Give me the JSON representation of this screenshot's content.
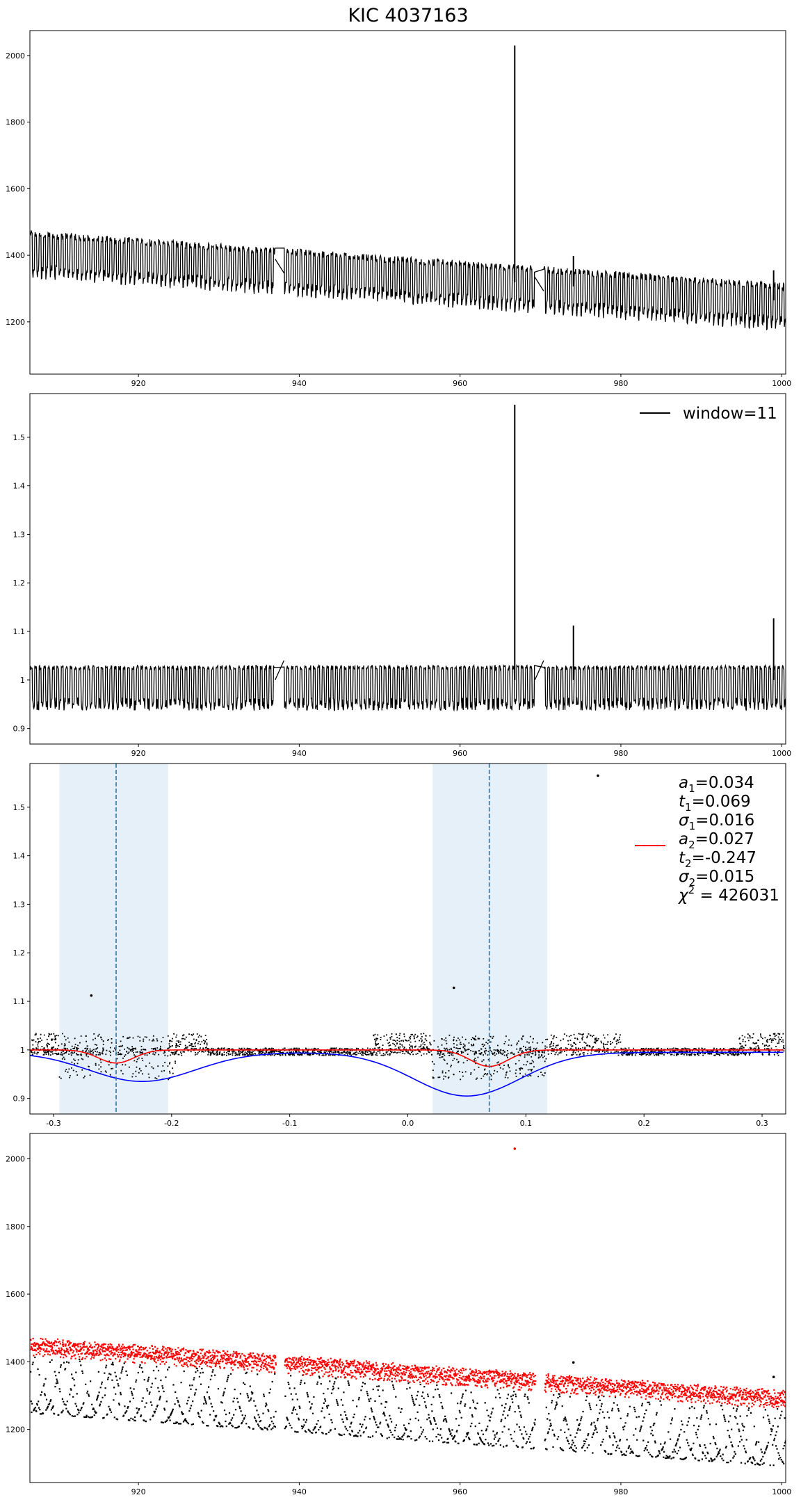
{
  "title": "KIC 4037163",
  "chart_data": [
    {
      "type": "line",
      "panel": "raw flux",
      "xlim": [
        906.5,
        1000.5
      ],
      "ylim": [
        1043,
        2075
      ],
      "xticks": [
        920,
        940,
        960,
        980,
        1000
      ],
      "yticks": [
        1200,
        1400,
        1600,
        1800,
        2000
      ],
      "series": [
        {
          "color": "#000000",
          "trend_start": 1420,
          "trend_end": 1262,
          "upper_offset": 55,
          "lower_offset": -90,
          "period": 0.55,
          "gaps": [
            [
              937.0,
              938.1
            ],
            [
              969.3,
              970.4
            ]
          ],
          "spikes": [
            [
              966.8,
              2030
            ],
            [
              974.1,
              1398
            ],
            [
              999.0,
              1355
            ]
          ]
        }
      ],
      "legend": null,
      "grid": false
    },
    {
      "type": "line",
      "panel": "normalized flux",
      "xlim": [
        906.5,
        1000.5
      ],
      "ylim": [
        0.868,
        1.59
      ],
      "xticks": [
        920,
        940,
        960,
        980,
        1000
      ],
      "yticks": [
        0.9,
        1.0,
        1.1,
        1.2,
        1.3,
        1.4,
        1.5
      ],
      "series": [
        {
          "name": "window=11",
          "color": "#000000",
          "upper": 1.03,
          "lower": 0.94,
          "period": 0.55,
          "gaps": [
            [
              937.0,
              938.1
            ],
            [
              969.3,
              970.4
            ]
          ],
          "spikes": [
            [
              966.8,
              1.567
            ],
            [
              974.1,
              1.112
            ],
            [
              999.0,
              1.127
            ]
          ]
        }
      ],
      "legend": "top-right",
      "grid": false
    },
    {
      "type": "scatter",
      "panel": "phase folded",
      "xlim": [
        -0.32,
        0.32
      ],
      "ylim": [
        0.868,
        1.59
      ],
      "xticks": [
        -0.3,
        -0.2,
        -0.1,
        0.0,
        0.1,
        0.2,
        0.3
      ],
      "yticks": [
        0.9,
        1.0,
        1.1,
        1.2,
        1.3,
        1.4,
        1.5
      ],
      "shaded_regions": [
        [
          -0.295,
          -0.203
        ],
        [
          0.021,
          0.118
        ]
      ],
      "vlines": [
        -0.247,
        0.069
      ],
      "outliers": [
        [
          -0.268,
          1.112
        ],
        [
          0.039,
          1.128
        ],
        [
          0.161,
          1.565
        ]
      ],
      "red_model": {
        "baseline": 1.0,
        "components": [
          {
            "a": 0.027,
            "t": -0.247,
            "sigma": 0.015
          },
          {
            "a": 0.034,
            "t": 0.069,
            "sigma": 0.016
          }
        ]
      },
      "blue_curve": {
        "baseline": 0.995,
        "components": [
          {
            "a": 0.06,
            "t": -0.225,
            "sigma": 0.045
          },
          {
            "a": 0.09,
            "t": 0.05,
            "sigma": 0.045
          }
        ]
      },
      "legend_lines": [
        "a_1=0.034",
        "t_1=0.069",
        "σ_1=0.016",
        "a_2=0.027",
        "t_2=-0.247",
        "σ_2=0.015",
        "χ^2 = 426031"
      ],
      "legend": "top-right",
      "grid": false
    },
    {
      "type": "scatter",
      "panel": "raw flux with model",
      "xlim": [
        906.5,
        1000.5
      ],
      "ylim": [
        1043,
        2075
      ],
      "xticks": [
        920,
        940,
        960,
        980,
        1000
      ],
      "yticks": [
        1200,
        1400,
        1600,
        1800,
        2000
      ],
      "series": [
        {
          "color": "#000000",
          "description": "in-eclipse points",
          "trend_start": 1420,
          "trend_end": 1262,
          "depth_min": -170,
          "depth_max": 0
        },
        {
          "color": "#ff0000",
          "description": "out-of-eclipse points",
          "trend_start": 1420,
          "trend_end": 1262,
          "band": [
            0,
            55
          ]
        }
      ],
      "outliers": [
        [
          966.8,
          2030
        ],
        [
          974.1,
          1398
        ],
        [
          999.0,
          1355
        ]
      ],
      "legend": null,
      "grid": false
    }
  ],
  "colors": {
    "data": "#000000",
    "model_red": "#ff0000",
    "model_blue": "#0000ff",
    "shade": "#e6f0f9",
    "vline": "#1f77b4"
  }
}
